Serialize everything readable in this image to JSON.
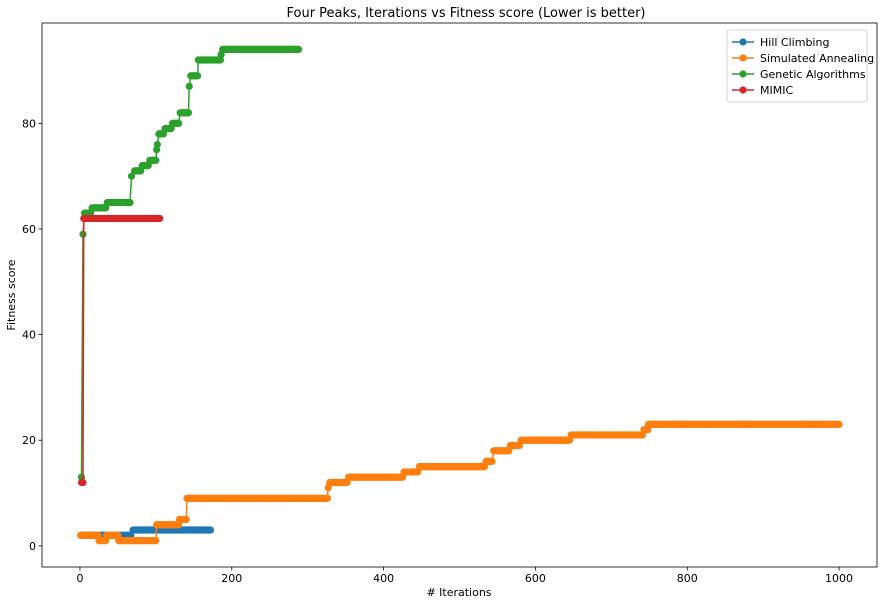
{
  "chart_data": {
    "type": "line",
    "title": "Four Peaks, Iterations vs Fitness score (Lower is better)",
    "xlabel": "# Iterations",
    "ylabel": "Fitness score",
    "xlim": [
      -50,
      1050
    ],
    "ylim": [
      -4,
      99
    ],
    "xticks": [
      0,
      200,
      400,
      600,
      800,
      1000
    ],
    "yticks": [
      0,
      20,
      40,
      60,
      80
    ],
    "grid": false,
    "legend": "top-right",
    "series": [
      {
        "name": "Hill Climbing",
        "color": "#1f77b4",
        "marker": "circle",
        "steps": [
          [
            1,
            2
          ],
          [
            67,
            2
          ],
          [
            70,
            3
          ],
          [
            172,
            3
          ]
        ]
      },
      {
        "name": "Simulated Annealing",
        "color": "#ff7f0e",
        "marker": "circle",
        "steps": [
          [
            1,
            2
          ],
          [
            24,
            2
          ],
          [
            25,
            1
          ],
          [
            34,
            1
          ],
          [
            35,
            2
          ],
          [
            50,
            2
          ],
          [
            51,
            1
          ],
          [
            100,
            1
          ],
          [
            101,
            4
          ],
          [
            130,
            4
          ],
          [
            131,
            5
          ],
          [
            140,
            5
          ],
          [
            141,
            9
          ],
          [
            326,
            9
          ],
          [
            327,
            11
          ],
          [
            329,
            12
          ],
          [
            352,
            12
          ],
          [
            354,
            13
          ],
          [
            425,
            13
          ],
          [
            427,
            14
          ],
          [
            445,
            14
          ],
          [
            447,
            15
          ],
          [
            533,
            15
          ],
          [
            535,
            16
          ],
          [
            543,
            16
          ],
          [
            545,
            18
          ],
          [
            565,
            18
          ],
          [
            567,
            19
          ],
          [
            579,
            19
          ],
          [
            581,
            20
          ],
          [
            645,
            20
          ],
          [
            647,
            21
          ],
          [
            741,
            21
          ],
          [
            743,
            22
          ],
          [
            748,
            22
          ],
          [
            749,
            23
          ],
          [
            1000,
            23
          ]
        ]
      },
      {
        "name": "Genetic Algorithms",
        "color": "#2ca02c",
        "marker": "circle",
        "steps": [
          [
            2,
            13
          ],
          [
            4,
            59
          ],
          [
            6,
            63
          ],
          [
            14,
            63
          ],
          [
            16,
            64
          ],
          [
            34,
            64
          ],
          [
            36,
            65
          ],
          [
            66,
            65
          ],
          [
            68,
            70
          ],
          [
            72,
            71
          ],
          [
            80,
            71
          ],
          [
            82,
            72
          ],
          [
            90,
            72
          ],
          [
            92,
            73
          ],
          [
            100,
            73
          ],
          [
            101,
            75
          ],
          [
            102,
            76
          ],
          [
            104,
            78
          ],
          [
            110,
            78
          ],
          [
            112,
            79
          ],
          [
            120,
            79
          ],
          [
            122,
            80
          ],
          [
            130,
            80
          ],
          [
            132,
            82
          ],
          [
            143,
            82
          ],
          [
            144,
            87
          ],
          [
            146,
            89
          ],
          [
            155,
            89
          ],
          [
            156,
            92
          ],
          [
            185,
            92
          ],
          [
            186,
            93
          ],
          [
            188,
            94
          ],
          [
            288,
            94
          ]
        ]
      },
      {
        "name": "MIMIC",
        "color": "#d62728",
        "marker": "circle",
        "steps": [
          [
            2,
            12
          ],
          [
            4,
            12
          ],
          [
            5,
            62
          ],
          [
            105,
            62
          ]
        ]
      }
    ]
  }
}
